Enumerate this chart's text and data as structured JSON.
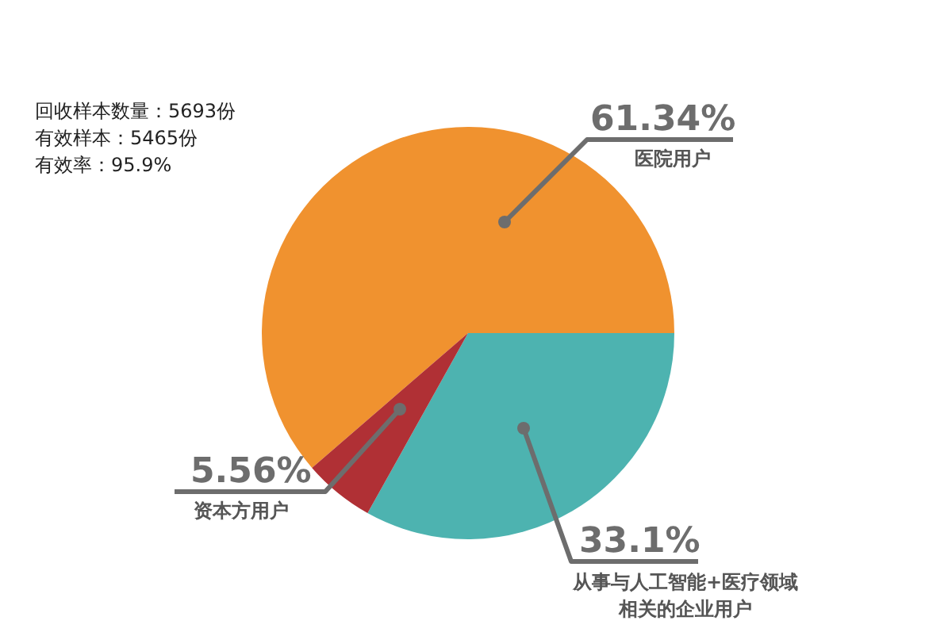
{
  "chart_data": {
    "type": "pie",
    "categories": [
      "医院用户",
      "从事与人工智能+医疗领域相关的企业用户",
      "资本方用户"
    ],
    "values": [
      61.34,
      33.1,
      5.56
    ],
    "colors": [
      "#f0922f",
      "#4db3b0",
      "#b03035"
    ],
    "value_labels": [
      "61.34%",
      "33.1%",
      "5.56%"
    ],
    "legend": false,
    "annotations": [
      "回收样本数量：5693份",
      "有效样本：5465份",
      "有效率：95.9%"
    ]
  }
}
